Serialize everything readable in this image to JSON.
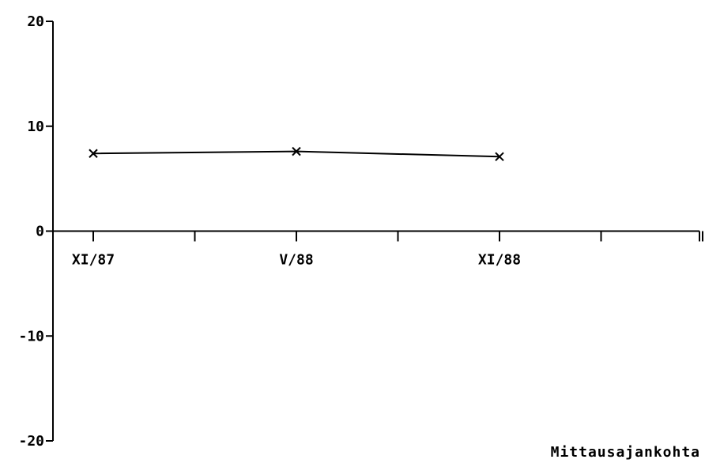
{
  "chart_data": {
    "type": "line",
    "xlabel": "Mittausajankohta",
    "ylabel": "",
    "ylim": [
      -20,
      20
    ],
    "yticks": [
      20,
      10,
      0,
      -10,
      -20
    ],
    "ytick_labels": [
      "20",
      "10",
      "0",
      "-10",
      "-20"
    ],
    "xticks": [
      {
        "label": "XI/87"
      },
      {
        "label": ""
      },
      {
        "label": "V/88"
      },
      {
        "label": ""
      },
      {
        "label": "XI/88"
      },
      {
        "label": ""
      },
      {
        "label": ""
      }
    ],
    "grid": false,
    "series": [
      {
        "marker": "x",
        "color": "#000000",
        "points": [
          {
            "x": "XI/87",
            "y": 7.4
          },
          {
            "x": "V/88",
            "y": 7.6
          },
          {
            "x": "XI/88",
            "y": 7.1
          }
        ]
      }
    ]
  }
}
